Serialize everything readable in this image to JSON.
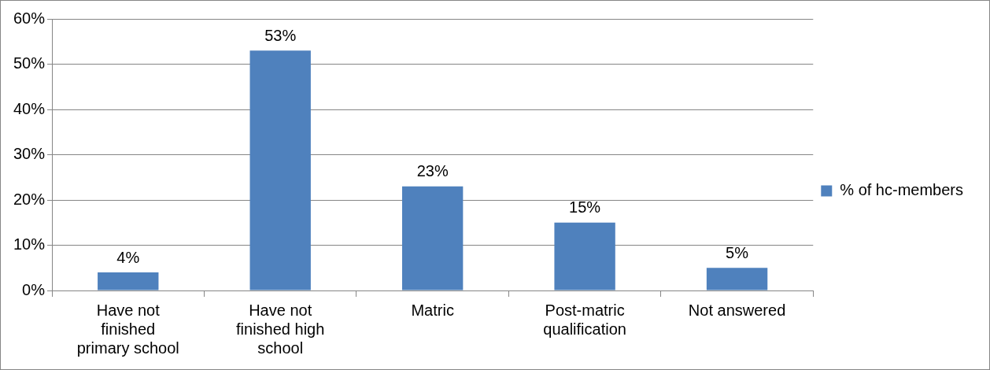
{
  "chart_data": {
    "type": "bar",
    "categories": [
      "Have not finished primary school",
      "Have not finished high school",
      "Matric",
      "Post-matric qualification",
      "Not answered"
    ],
    "series": [
      {
        "name": "% of hc-members",
        "color": "#4f81bd",
        "values": [
          4,
          53,
          23,
          15,
          5
        ],
        "value_labels": [
          "4%",
          "53%",
          "23%",
          "15%",
          "5%"
        ]
      }
    ],
    "ylim": [
      0,
      60
    ],
    "yticks": [
      {
        "value": 0,
        "label": "0%"
      },
      {
        "value": 10,
        "label": "10%"
      },
      {
        "value": 20,
        "label": "20%"
      },
      {
        "value": 30,
        "label": "30%"
      },
      {
        "value": 40,
        "label": "40%"
      },
      {
        "value": 50,
        "label": "50%"
      },
      {
        "value": 60,
        "label": "60%"
      }
    ],
    "grid": "y",
    "legend": "right"
  }
}
